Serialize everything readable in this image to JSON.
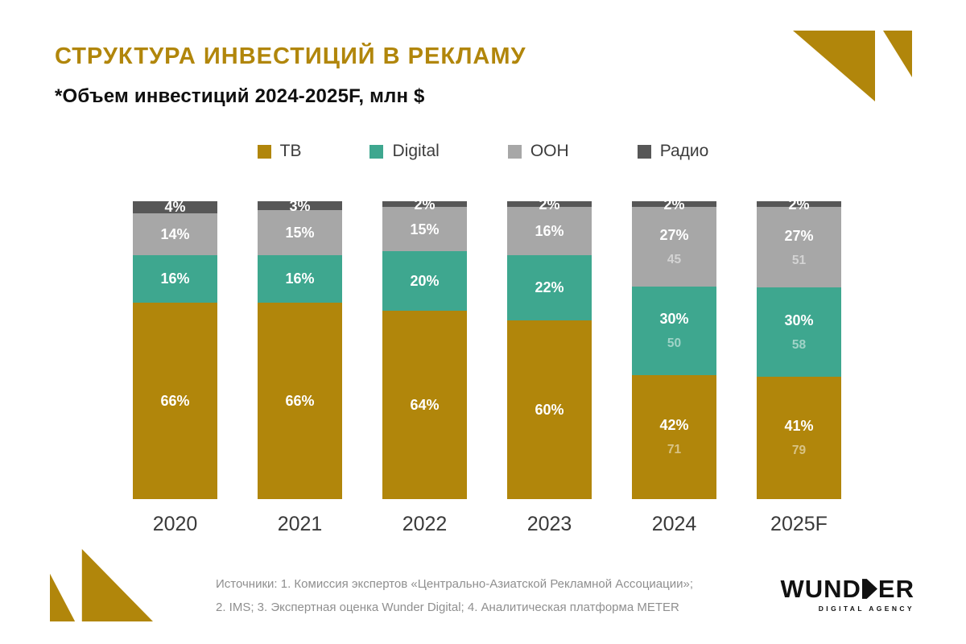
{
  "page": {
    "title": "СТРУКТУРА ИНВЕСТИЦИЙ В РЕКЛАМУ",
    "subtitle": "*Объем инвестиций 2024-2025F, млн $"
  },
  "chart_data": {
    "type": "bar",
    "stacked": true,
    "percent_based": true,
    "legend_position": "top",
    "categories": [
      "2020",
      "2021",
      "2022",
      "2023",
      "2024",
      "2025F"
    ],
    "series": [
      {
        "name": "ТВ",
        "color": "#B1860B",
        "values": [
          66,
          66,
          64,
          60,
          42,
          41
        ],
        "abs_values": [
          null,
          null,
          null,
          null,
          71,
          79
        ]
      },
      {
        "name": "Digital",
        "color": "#3EA78F",
        "values": [
          16,
          16,
          20,
          22,
          30,
          30
        ],
        "abs_values": [
          null,
          null,
          null,
          null,
          50,
          58
        ]
      },
      {
        "name": "OOH",
        "color": "#A7A7A7",
        "values": [
          14,
          15,
          15,
          16,
          27,
          27
        ],
        "abs_values": [
          null,
          null,
          null,
          null,
          45,
          51
        ]
      },
      {
        "name": "Радио",
        "color": "#575757",
        "values": [
          4,
          3,
          2,
          2,
          2,
          2
        ],
        "abs_values": [
          null,
          null,
          null,
          null,
          null,
          null
        ]
      }
    ],
    "value_label_suffix": "%",
    "abs_values_unit": "млн $"
  },
  "sources": {
    "line1": "Источники: 1. Комиссия экспертов «Центрально-Азиатской Рекламной Ассоциации»;",
    "line2": "2. IMS; 3. Экспертная оценка Wunder Digital; 4. Аналитическая платформа METER"
  },
  "logo": {
    "brand": "WUNDER",
    "brand_left": "WUND",
    "brand_right": "ER",
    "tagline": "DIGITAL AGENCY"
  },
  "colors": {
    "accent_gold": "#B1860B",
    "background": "#FFFFFF"
  }
}
